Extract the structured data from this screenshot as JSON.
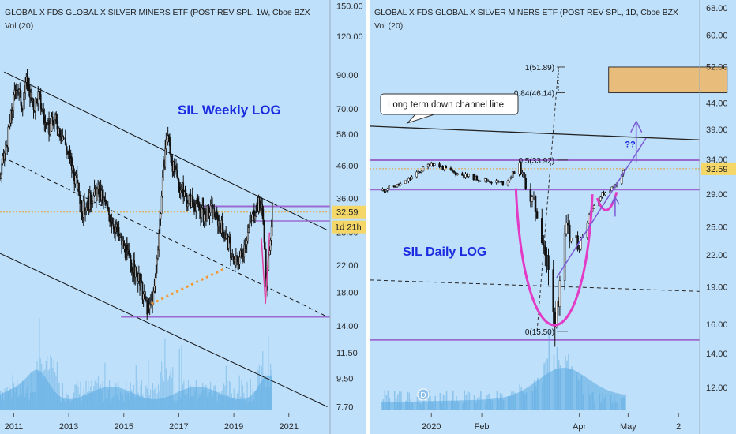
{
  "left": {
    "header": "GLOBAL X FDS GLOBAL X SILVER MINERS ETF (POST REV SPL, 1W, Cboe BZX",
    "volume_label": "Vol (20)",
    "annotation": "SIL Weekly LOG",
    "price_tag": "32.59",
    "countdown_tag": "1d 21h"
  },
  "right": {
    "header": "GLOBAL X FDS GLOBAL X SILVER MINERS ETF (POST REV SPL, 1D, Cboe BZX",
    "volume_label": "Vol (20)",
    "annotation": "SIL Daily LOG",
    "callout": "Long term down channel line",
    "question": "??",
    "fib_top": "1(51.89)",
    "fib_0_84": "0.84(46.14)",
    "fib_0_5": "0.5(33.92)",
    "fib_0": "0(15.50)",
    "price_tag": "32.59",
    "dividend_marker": "D"
  },
  "chart_data": [
    {
      "type": "line",
      "title": "GLOBAL X FDS GLOBAL X SILVER MINERS ETF (POST REV SPL, 1W, Cboe BZX",
      "annotation": "SIL Weekly LOG",
      "scale": "log",
      "x_ticks": [
        "2011",
        "2013",
        "2015",
        "2017",
        "2019",
        "2021"
      ],
      "y_ticks": [
        150.0,
        120.0,
        90.0,
        70.0,
        58.0,
        46.0,
        36.0,
        28.0,
        22.0,
        18.0,
        14.0,
        11.5,
        9.5,
        7.7
      ],
      "xlim": [
        2010.5,
        2022.5
      ],
      "ylim": [
        7.5,
        155
      ],
      "series": [
        {
          "x": [
            2010.5,
            2010.8,
            2011.1,
            2011.3,
            2011.5,
            2011.7,
            2011.9,
            2012.2,
            2012.5,
            2012.8,
            2013.1,
            2013.3,
            2013.5,
            2013.8,
            2014.1,
            2014.4,
            2014.7,
            2015.0,
            2015.3,
            2015.6,
            2015.9,
            2016.1,
            2016.3,
            2016.5,
            2016.6,
            2016.8,
            2017.0,
            2017.3,
            2017.6,
            2017.9,
            2018.2,
            2018.5,
            2018.8,
            2019.0,
            2019.3,
            2019.6,
            2019.8,
            2020.0,
            2020.1,
            2020.2,
            2020.3,
            2020.4
          ],
          "values": [
            42,
            58,
            85,
            72,
            88,
            70,
            78,
            60,
            64,
            57,
            46,
            40,
            33,
            36,
            38,
            33,
            29,
            25,
            22,
            19,
            15.5,
            18,
            30,
            52,
            58,
            45,
            40,
            36,
            35,
            32,
            33,
            30,
            26,
            22,
            24,
            30,
            34,
            35,
            28,
            18,
            26,
            32.59
          ]
        }
      ],
      "volume": "Vol (20)",
      "last_price": 32.59
    },
    {
      "type": "line",
      "title": "GLOBAL X FDS GLOBAL X SILVER MINERS ETF (POST REV SPL, 1D, Cboe BZX",
      "annotation": "SIL Daily LOG",
      "scale": "log",
      "x_ticks": [
        "2020",
        "Feb",
        "Apr",
        "May",
        "2"
      ],
      "y_ticks": [
        68.0,
        60.0,
        52.0,
        44.0,
        39.0,
        34.0,
        29.0,
        25.0,
        22.0,
        19.0,
        16.0,
        14.0,
        12.0
      ],
      "ylim": [
        10.8,
        70
      ],
      "series": [
        {
          "x": [
            "2019-12-01",
            "2019-12-15",
            "2020-01-01",
            "2020-01-15",
            "2020-02-01",
            "2020-02-15",
            "2020-02-24",
            "2020-03-01",
            "2020-03-08",
            "2020-03-13",
            "2020-03-16",
            "2020-03-19",
            "2020-03-24",
            "2020-04-01",
            "2020-04-08",
            "2020-04-15",
            "2020-04-22",
            "2020-04-29"
          ],
          "values": [
            29.5,
            30.5,
            33.5,
            32,
            31,
            30.5,
            33,
            29,
            26,
            20,
            16.5,
            19,
            24,
            23,
            27,
            29,
            30,
            32.59
          ]
        }
      ],
      "fibonacci": [
        {
          "level": 1,
          "value": 51.89
        },
        {
          "level": 0.84,
          "value": 46.14
        },
        {
          "level": 0.5,
          "value": 33.92
        },
        {
          "level": 0,
          "value": 15.5
        }
      ],
      "volume": "Vol (20)",
      "last_price": 32.59
    }
  ]
}
